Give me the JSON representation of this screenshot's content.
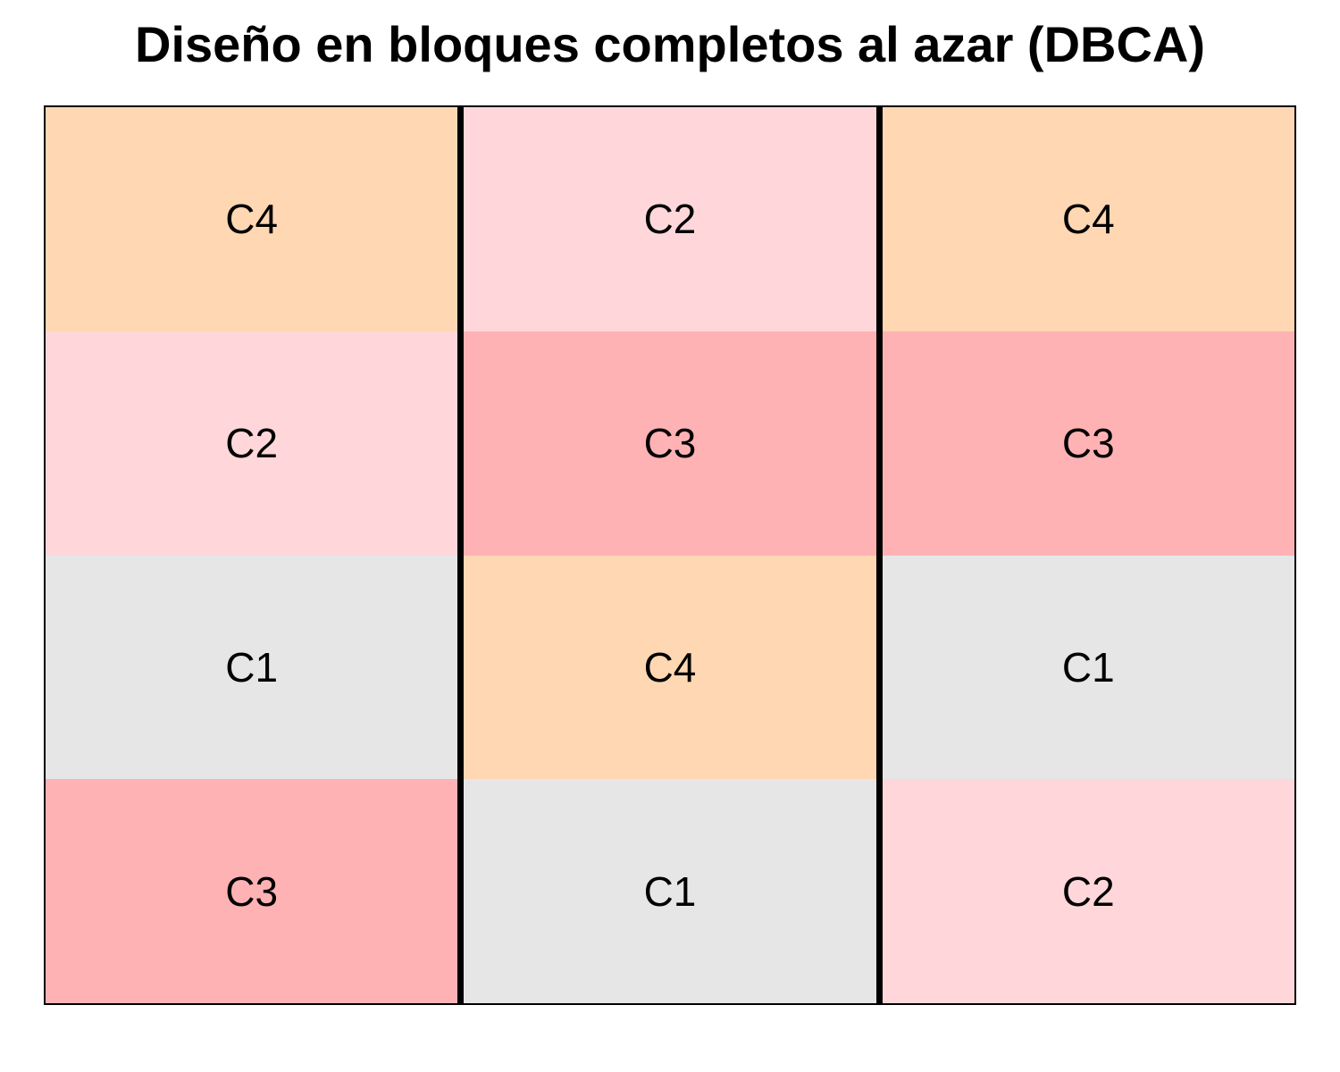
{
  "title": "Diseño en bloques completos al azar (DBCA)",
  "colors": {
    "C1": "#e6e6e6",
    "C2": "#ffd7da",
    "C3": "#ffb2b4",
    "C4": "#ffd7b3"
  },
  "blocks": [
    {
      "plots": [
        "C4",
        "C2",
        "C1",
        "C3"
      ]
    },
    {
      "plots": [
        "C2",
        "C3",
        "C4",
        "C1"
      ]
    },
    {
      "plots": [
        "C4",
        "C3",
        "C1",
        "C2"
      ]
    }
  ]
}
